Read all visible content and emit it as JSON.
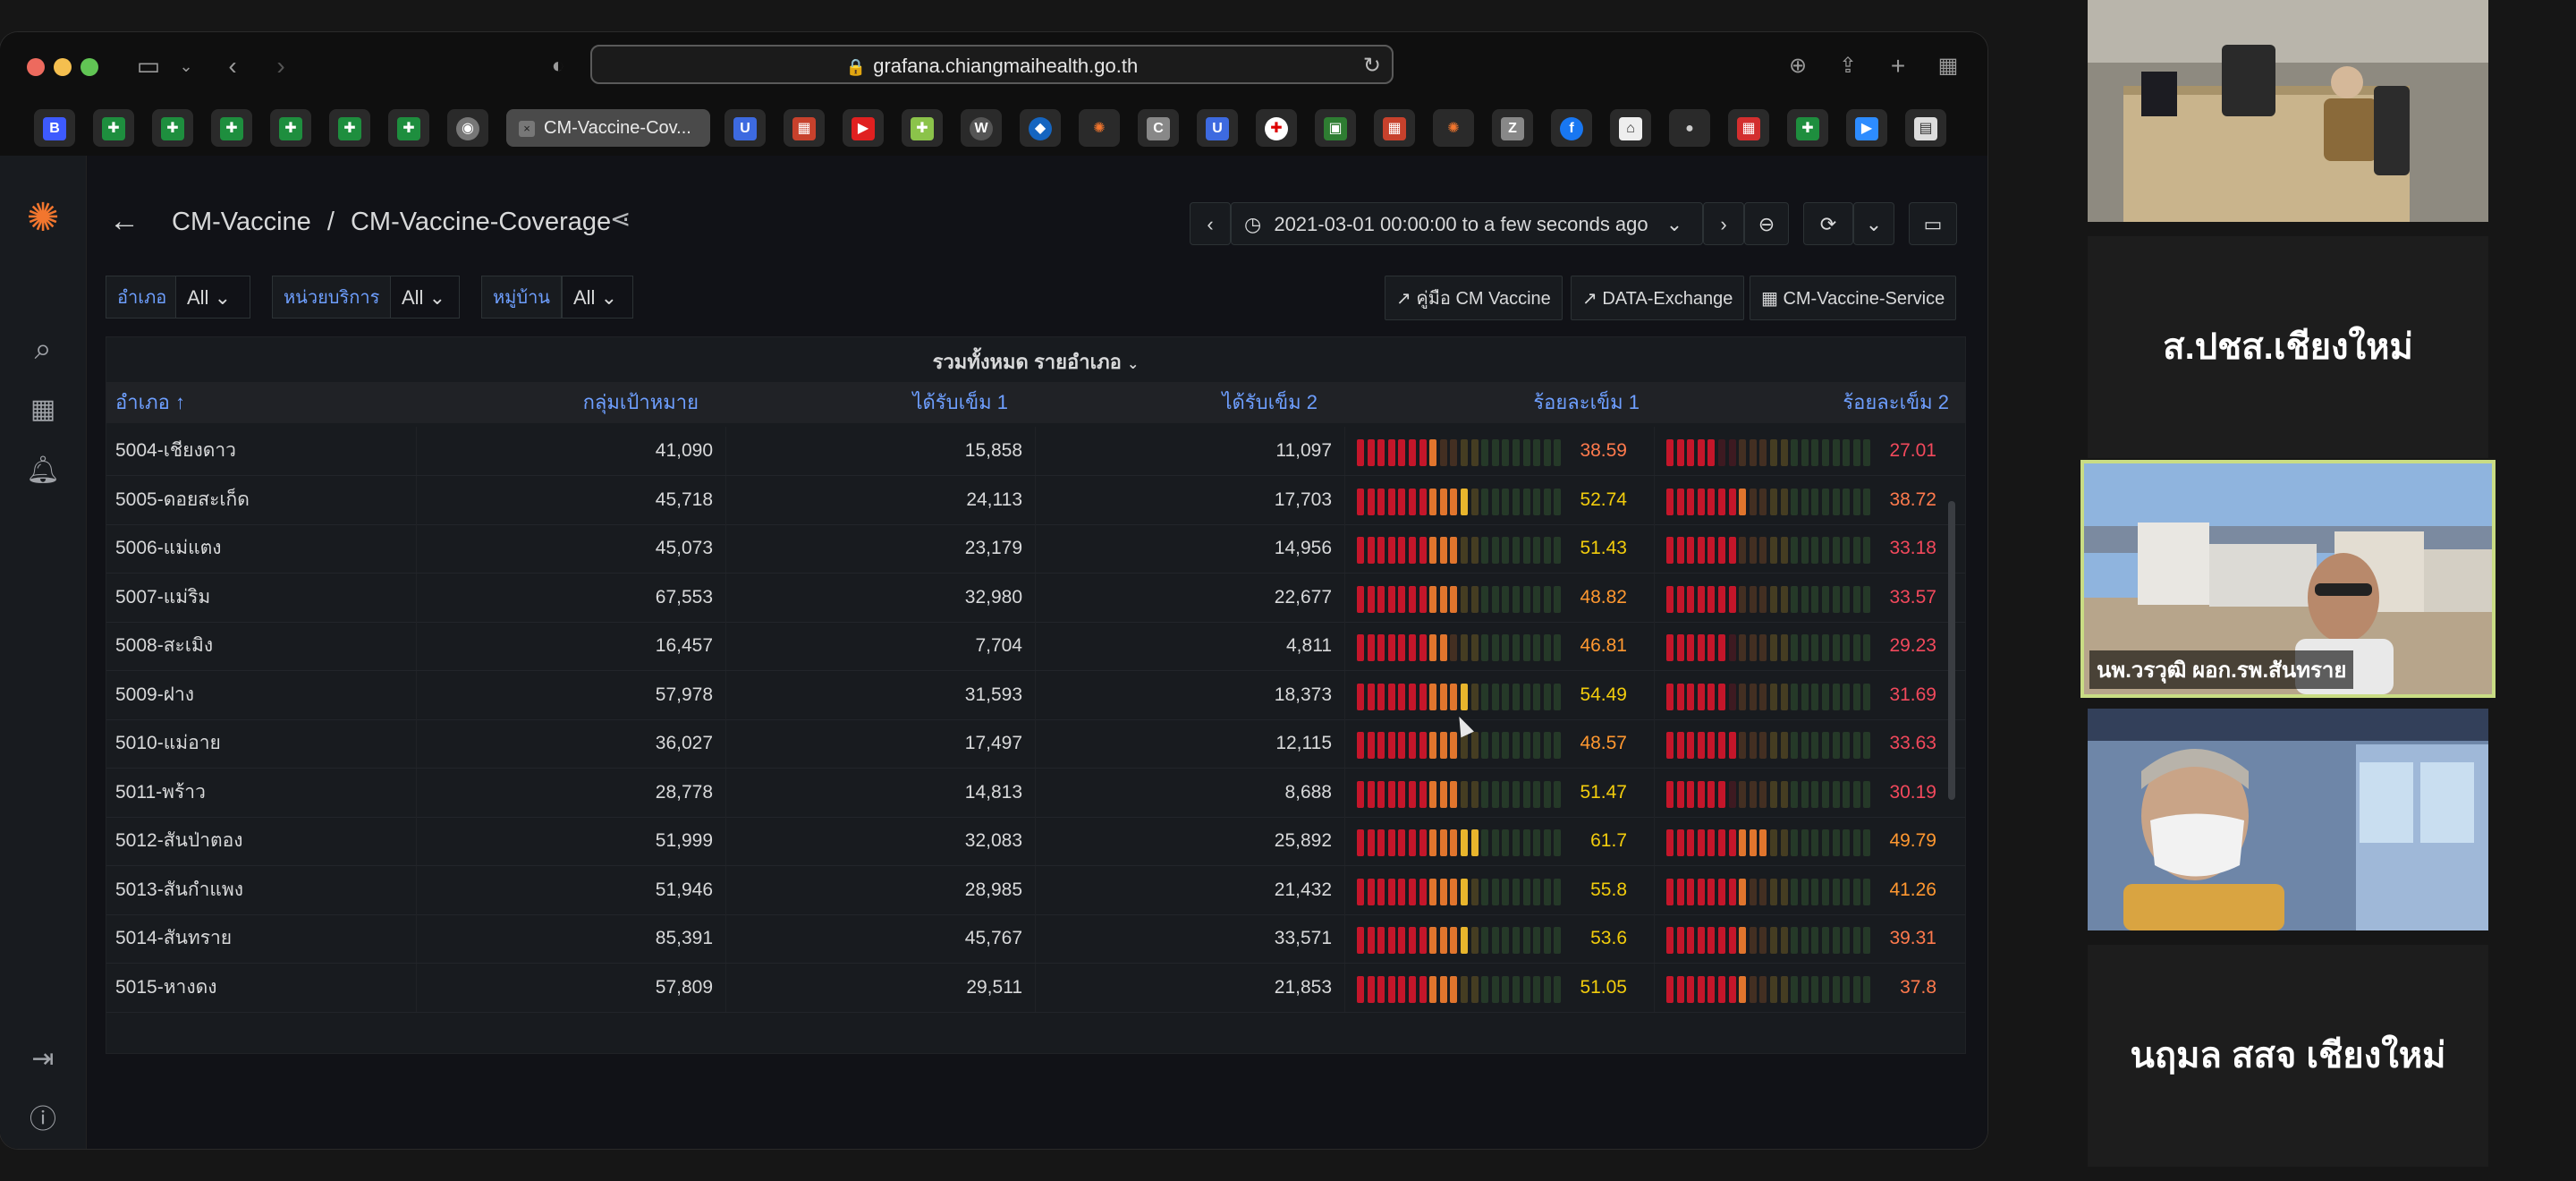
{
  "browser": {
    "url": "grafana.chiangmaihealth.go.th",
    "active_tab": "CM-Vaccine-Cov..."
  },
  "dashboard": {
    "folder": "CM-Vaccine",
    "separator": "/",
    "name": "CM-Vaccine-Coverage",
    "time_range": "2021-03-01 00:00:00 to a few seconds ago"
  },
  "variables": [
    {
      "label": "อำเภอ",
      "value": "All"
    },
    {
      "label": "หน่วยบริการ",
      "value": "All"
    },
    {
      "label": "หมู่บ้าน",
      "value": "All"
    }
  ],
  "links": [
    "คู่มือ CM Vaccine",
    "DATA-Exchange",
    "CM-Vaccine-Service"
  ],
  "panel": {
    "title": "รวมทั้งหมด รายอำเภอ",
    "columns": [
      "อำเภอ",
      "กลุ่มเป้าหมาย",
      "ได้รับเข็ม 1",
      "ได้รับเข็ม 2",
      "ร้อยละเข็ม 1",
      "ร้อยละเข็ม 2"
    ],
    "rows": [
      {
        "district": "5004-เชียงดาว",
        "target": "41,090",
        "dose1": "15,858",
        "dose2": "11,097",
        "pct1": "38.59",
        "pct2": "27.01"
      },
      {
        "district": "5005-ดอยสะเก็ด",
        "target": "45,718",
        "dose1": "24,113",
        "dose2": "17,703",
        "pct1": "52.74",
        "pct2": "38.72"
      },
      {
        "district": "5006-แม่แตง",
        "target": "45,073",
        "dose1": "23,179",
        "dose2": "14,956",
        "pct1": "51.43",
        "pct2": "33.18"
      },
      {
        "district": "5007-แม่ริม",
        "target": "67,553",
        "dose1": "32,980",
        "dose2": "22,677",
        "pct1": "48.82",
        "pct2": "33.57"
      },
      {
        "district": "5008-สะเมิง",
        "target": "16,457",
        "dose1": "7,704",
        "dose2": "4,811",
        "pct1": "46.81",
        "pct2": "29.23"
      },
      {
        "district": "5009-ฝาง",
        "target": "57,978",
        "dose1": "31,593",
        "dose2": "18,373",
        "pct1": "54.49",
        "pct2": "31.69"
      },
      {
        "district": "5010-แม่อาย",
        "target": "36,027",
        "dose1": "17,497",
        "dose2": "12,115",
        "pct1": "48.57",
        "pct2": "33.63"
      },
      {
        "district": "5011-พร้าว",
        "target": "28,778",
        "dose1": "14,813",
        "dose2": "8,688",
        "pct1": "51.47",
        "pct2": "30.19"
      },
      {
        "district": "5012-สันป่าตอง",
        "target": "51,999",
        "dose1": "32,083",
        "dose2": "25,892",
        "pct1": "61.7",
        "pct2": "49.79"
      },
      {
        "district": "5013-สันกำแพง",
        "target": "51,946",
        "dose1": "28,985",
        "dose2": "21,432",
        "pct1": "55.8",
        "pct2": "41.26"
      },
      {
        "district": "5014-สันทราย",
        "target": "85,391",
        "dose1": "45,767",
        "dose2": "33,571",
        "pct1": "53.6",
        "pct2": "39.31"
      },
      {
        "district": "5015-หางดง",
        "target": "57,809",
        "dose1": "29,511",
        "dose2": "21,853",
        "pct1": "51.05",
        "pct2": "37.8"
      }
    ]
  },
  "participants": {
    "tile1_name": "ส.ปชส.เชียงใหม่",
    "speaker_label": "นพ.วรวุฒิ ผอก.รพ.สันทราย",
    "tile2_name": "นฤมล สสจ เชียงใหม่"
  },
  "colors": {
    "accent": "#6e9fff",
    "grafana_orange": "#f2762e",
    "speaker_border": "#c9dc84"
  }
}
